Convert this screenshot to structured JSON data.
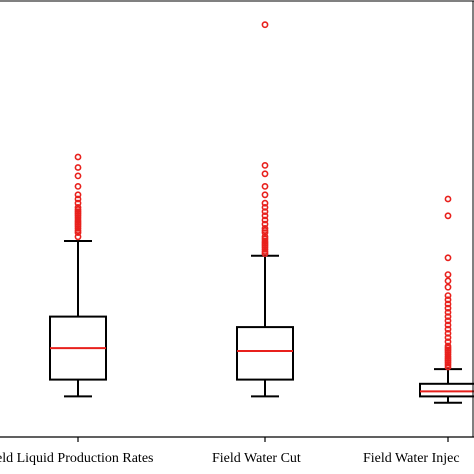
{
  "chart_data": {
    "type": "boxplot",
    "categories": [
      "Field Liquid Production Rates",
      "Field Water Cut",
      "Field Water Injection"
    ],
    "visible_tick_labels": [
      "eld Liquid Production Rates",
      "Field Water Cut",
      "Field Water Injec"
    ],
    "title": "",
    "xlabel": "",
    "ylabel": "",
    "ylim": [
      0,
      100
    ],
    "grid": false,
    "legend": "none",
    "colors": {
      "box": "#000000",
      "median": "#e8201c",
      "outlier": "#e8201c"
    },
    "series": [
      {
        "whisker_low": 8,
        "q1": 12,
        "median": 19.5,
        "q3": 27,
        "whisker_high": 45,
        "outliers": [
          46,
          47,
          47.5,
          48,
          48.5,
          49,
          49.5,
          50,
          50.5,
          51,
          51.5,
          52,
          52.5,
          53,
          54,
          55,
          56,
          58,
          60.5,
          62.5,
          65
        ]
      },
      {
        "whisker_low": 8,
        "q1": 12,
        "median": 18.8,
        "q3": 24.5,
        "whisker_high": 41.5,
        "outliers": [
          42,
          42.5,
          43,
          43.5,
          44,
          44.5,
          45,
          45.5,
          46,
          47,
          47.5,
          48,
          49,
          50,
          51,
          52,
          53,
          54,
          56,
          58,
          61,
          63,
          96.5
        ]
      },
      {
        "whisker_low": 6.5,
        "q1": 8,
        "median": 9.2,
        "q3": 11,
        "whisker_high": 14.5,
        "outliers": [
          15,
          15.5,
          16,
          16.5,
          17,
          17.5,
          18,
          18.5,
          19,
          19.5,
          20,
          21,
          22,
          23,
          24,
          25,
          26,
          27,
          28,
          29,
          30,
          31,
          32,
          34,
          35.5,
          37,
          41,
          51,
          55
        ]
      }
    ]
  }
}
